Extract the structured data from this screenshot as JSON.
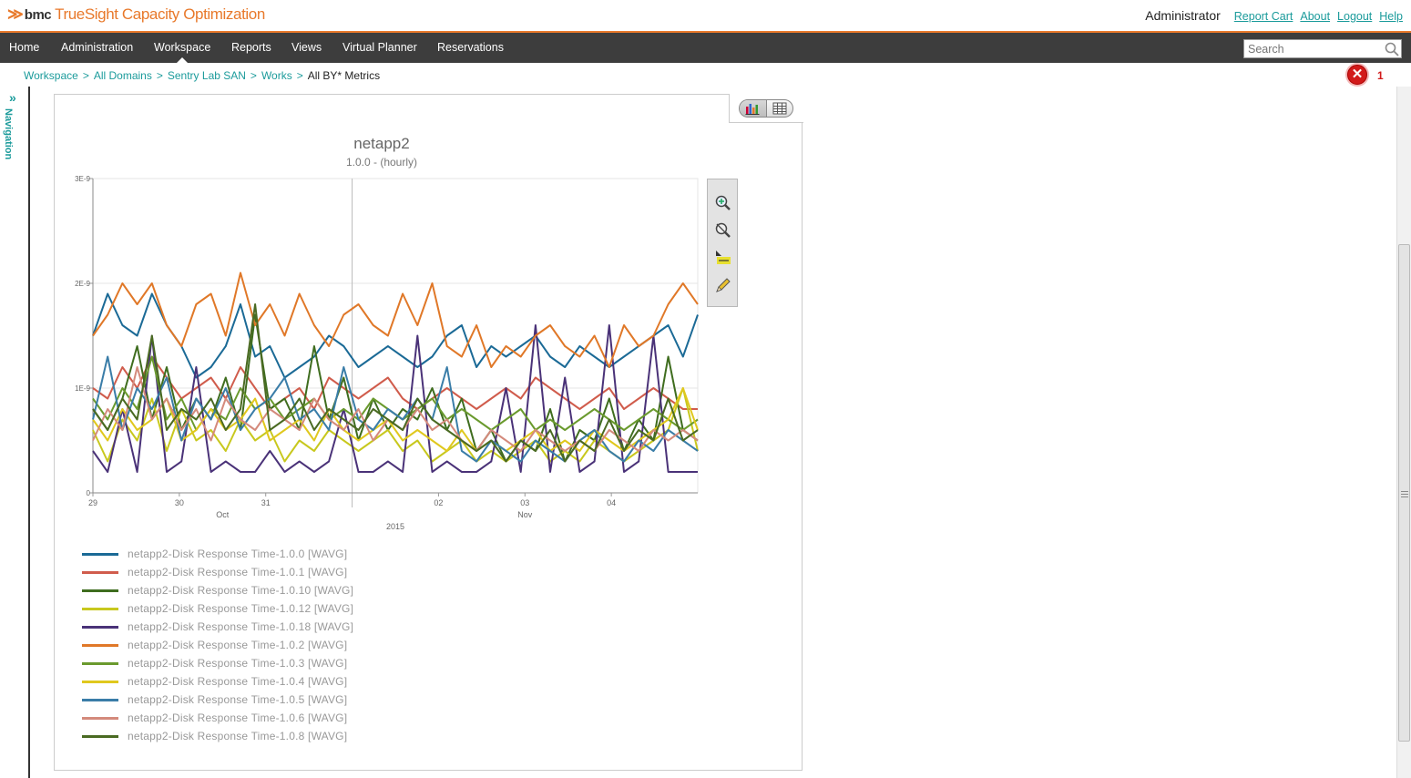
{
  "app": {
    "brand_name": "bmc",
    "product_name": "TrueSight Capacity Optimization",
    "user_name": "Administrator",
    "user_links": [
      "Report Cart",
      "About",
      "Logout",
      "Help"
    ]
  },
  "nav": {
    "items": [
      "Home",
      "Administration",
      "Workspace",
      "Reports",
      "Views",
      "Virtual Planner",
      "Reservations"
    ],
    "active": "Workspace",
    "search_placeholder": "Search"
  },
  "breadcrumb": {
    "links": [
      "Workspace",
      "All Domains",
      "Sentry Lab SAN",
      "Works"
    ],
    "current": "All BY* Metrics"
  },
  "errors": {
    "count": "1"
  },
  "side_panel": {
    "label": "Navigation"
  },
  "colors": {
    "accent": "#e8792b",
    "link": "#1b9b9b",
    "navbar": "#3d3d3d",
    "error": "#d21a1a"
  },
  "toolbar": {
    "view_toggle": [
      "chart-view-icon",
      "table-view-icon"
    ],
    "tools": [
      "zoom-in-icon",
      "zoom-reset-icon",
      "label-icon",
      "pencil-icon"
    ]
  },
  "chart_data": {
    "type": "line",
    "title": "netapp2",
    "subtitle": "1.0.0 - (hourly)",
    "y_tick_labels": [
      "0",
      "1E-9",
      "2E-9",
      "3E-9"
    ],
    "y_ticks": [
      0,
      1e-09,
      2e-09,
      3e-09
    ],
    "ylim": [
      0,
      3e-09
    ],
    "x_tick_labels": [
      "29",
      "30",
      "31",
      "02",
      "03",
      "04"
    ],
    "x_tick_values": [
      0,
      1,
      2,
      4,
      5,
      6
    ],
    "xlim": [
      0,
      7
    ],
    "month_labels": [
      {
        "label": "Oct",
        "x": 1.5
      },
      {
        "label": "Nov",
        "x": 5.0
      }
    ],
    "year_label": "2015",
    "month_boundary_x": 3,
    "grid": true,
    "legend_position": "bottom",
    "series": [
      {
        "name": "netapp2-Disk Response Time-1.0.0 [WAVG]",
        "color": "#1b6a96",
        "values": [
          1.5e-09,
          1.9e-09,
          1.6e-09,
          1.5e-09,
          1.9e-09,
          1.6e-09,
          1.4e-09,
          1.1e-09,
          1.2e-09,
          1.4e-09,
          1.8e-09,
          1.3e-09,
          1.4e-09,
          1.1e-09,
          1.2e-09,
          1.3e-09,
          1.5e-09,
          1.4e-09,
          1.2e-09,
          1.3e-09,
          1.4e-09,
          1.3e-09,
          1.2e-09,
          1.3e-09,
          1.5e-09,
          1.6e-09,
          1.2e-09,
          1.4e-09,
          1.3e-09,
          1.4e-09,
          1.5e-09,
          1.3e-09,
          1.2e-09,
          1.4e-09,
          1.3e-09,
          1.2e-09,
          1.3e-09,
          1.4e-09,
          1.5e-09,
          1.6e-09,
          1.3e-09,
          1.7e-09
        ]
      },
      {
        "name": "netapp2-Disk Response Time-1.0.1 [WAVG]",
        "color": "#d05c4c",
        "values": [
          1e-09,
          9e-10,
          1.2e-09,
          1e-09,
          1.3e-09,
          1.1e-09,
          9e-10,
          1e-09,
          1.1e-09,
          9e-10,
          1.2e-09,
          1e-09,
          8e-10,
          9e-10,
          1e-09,
          8e-10,
          1.1e-09,
          1e-09,
          9e-10,
          1e-09,
          1.1e-09,
          9e-10,
          8e-10,
          9e-10,
          1e-09,
          9e-10,
          8e-10,
          9e-10,
          1e-09,
          9e-10,
          1.1e-09,
          1e-09,
          9e-10,
          8e-10,
          9e-10,
          1e-09,
          8e-10,
          9e-10,
          1e-09,
          9e-10,
          8e-10,
          8e-10
        ]
      },
      {
        "name": "netapp2-Disk Response Time-1.0.10 [WAVG]",
        "color": "#3f6d1f",
        "values": [
          8e-10,
          6e-10,
          9e-10,
          1.4e-09,
          7e-10,
          1.2e-09,
          6e-10,
          9e-10,
          7e-10,
          1.1e-09,
          6e-10,
          1.7e-09,
          8e-10,
          9e-10,
          6e-10,
          1.4e-09,
          7e-10,
          1.1e-09,
          5e-10,
          9e-10,
          6e-10,
          8e-10,
          7e-10,
          1e-09,
          6e-10,
          9e-10,
          4e-10,
          6e-10,
          3e-10,
          5e-10,
          4e-10,
          8e-10,
          3e-10,
          6e-10,
          5e-10,
          9e-10,
          4e-10,
          7e-10,
          5e-10,
          1.3e-09,
          6e-10,
          5e-10
        ]
      },
      {
        "name": "netapp2-Disk Response Time-1.0.12 [WAVG]",
        "color": "#c8c81e",
        "values": [
          6e-10,
          3e-10,
          7e-10,
          5e-10,
          9e-10,
          4e-10,
          8e-10,
          5e-10,
          6e-10,
          4e-10,
          7e-10,
          5e-10,
          6e-10,
          3e-10,
          5e-10,
          4e-10,
          6e-10,
          5e-10,
          4e-10,
          5e-10,
          6e-10,
          4e-10,
          5e-10,
          3e-10,
          4e-10,
          5e-10,
          3e-10,
          4e-10,
          3e-10,
          4e-10,
          5e-10,
          3e-10,
          4e-10,
          3e-10,
          5e-10,
          4e-10,
          3e-10,
          4e-10,
          5e-10,
          6e-10,
          1e-09,
          4e-10
        ]
      },
      {
        "name": "netapp2-Disk Response Time-1.0.18 [WAVG]",
        "color": "#4a3278",
        "values": [
          4e-10,
          2e-10,
          8e-10,
          2e-10,
          1.5e-09,
          2e-10,
          3e-10,
          1.2e-09,
          2e-10,
          3e-10,
          2e-10,
          2e-10,
          4e-10,
          2e-10,
          3e-10,
          2e-10,
          3e-10,
          8e-10,
          2e-10,
          2e-10,
          3e-10,
          2e-10,
          1.5e-09,
          2e-10,
          3e-10,
          2e-10,
          2e-10,
          3e-10,
          1e-09,
          2e-10,
          1.6e-09,
          2e-10,
          1.1e-09,
          2e-10,
          3e-10,
          1.6e-09,
          2e-10,
          3e-10,
          1.5e-09,
          2e-10,
          2e-10,
          2e-10
        ]
      },
      {
        "name": "netapp2-Disk Response Time-1.0.2 [WAVG]",
        "color": "#e07828",
        "values": [
          1.5e-09,
          1.7e-09,
          2e-09,
          1.8e-09,
          2e-09,
          1.6e-09,
          1.4e-09,
          1.8e-09,
          1.9e-09,
          1.5e-09,
          2.1e-09,
          1.6e-09,
          1.8e-09,
          1.5e-09,
          1.9e-09,
          1.6e-09,
          1.4e-09,
          1.7e-09,
          1.8e-09,
          1.6e-09,
          1.5e-09,
          1.9e-09,
          1.6e-09,
          2e-09,
          1.4e-09,
          1.3e-09,
          1.6e-09,
          1.2e-09,
          1.4e-09,
          1.3e-09,
          1.5e-09,
          1.6e-09,
          1.4e-09,
          1.3e-09,
          1.5e-09,
          1.2e-09,
          1.6e-09,
          1.4e-09,
          1.5e-09,
          1.8e-09,
          2e-09,
          1.8e-09
        ]
      },
      {
        "name": "netapp2-Disk Response Time-1.0.3 [WAVG]",
        "color": "#6a9a2e",
        "values": [
          9e-10,
          7e-10,
          1e-09,
          8e-10,
          1.3e-09,
          7e-10,
          9e-10,
          6e-10,
          8e-10,
          7e-10,
          1e-09,
          8e-10,
          9e-10,
          7e-10,
          8e-10,
          9e-10,
          7e-10,
          8e-10,
          7e-10,
          9e-10,
          8e-10,
          7e-10,
          8e-10,
          9e-10,
          7e-10,
          8e-10,
          7e-10,
          6e-10,
          7e-10,
          8e-10,
          6e-10,
          7e-10,
          6e-10,
          7e-10,
          8e-10,
          7e-10,
          6e-10,
          7e-10,
          8e-10,
          7e-10,
          6e-10,
          7e-10
        ]
      },
      {
        "name": "netapp2-Disk Response Time-1.0.4 [WAVG]",
        "color": "#e0c81e",
        "values": [
          7e-10,
          5e-10,
          8e-10,
          6e-10,
          7e-10,
          9e-10,
          5e-10,
          6e-10,
          8e-10,
          6e-10,
          7e-10,
          9e-10,
          5e-10,
          6e-10,
          7e-10,
          5e-10,
          8e-10,
          6e-10,
          5e-10,
          6e-10,
          7e-10,
          5e-10,
          6e-10,
          5e-10,
          4e-10,
          6e-10,
          4e-10,
          5e-10,
          4e-10,
          5e-10,
          6e-10,
          4e-10,
          5e-10,
          4e-10,
          6e-10,
          5e-10,
          4e-10,
          5e-10,
          6e-10,
          7e-10,
          1e-09,
          6e-10
        ]
      },
      {
        "name": "netapp2-Disk Response Time-1.0.5 [WAVG]",
        "color": "#3a7da8",
        "values": [
          7e-10,
          1.3e-09,
          6e-10,
          1e-09,
          8e-10,
          1.1e-09,
          5e-10,
          9e-10,
          7e-10,
          1e-09,
          6e-10,
          8e-10,
          9e-10,
          1.1e-09,
          7e-10,
          8e-10,
          6e-10,
          1.2e-09,
          7e-10,
          6e-10,
          8e-10,
          7e-10,
          9e-10,
          7e-10,
          1.2e-09,
          4e-10,
          3e-10,
          5e-10,
          4e-10,
          3e-10,
          5e-10,
          4e-10,
          3e-10,
          5e-10,
          6e-10,
          4e-10,
          3e-10,
          5e-10,
          4e-10,
          6e-10,
          5e-10,
          4e-10
        ]
      },
      {
        "name": "netapp2-Disk Response Time-1.0.6 [WAVG]",
        "color": "#d48a7c",
        "values": [
          5e-10,
          8e-10,
          6e-10,
          1.2e-09,
          7e-10,
          9e-10,
          6e-10,
          8e-10,
          5e-10,
          9e-10,
          7e-10,
          6e-10,
          8e-10,
          7e-10,
          6e-10,
          9e-10,
          7e-10,
          6e-10,
          8e-10,
          5e-10,
          7e-10,
          6e-10,
          8e-10,
          6e-10,
          7e-10,
          5e-10,
          4e-10,
          6e-10,
          5e-10,
          4e-10,
          6e-10,
          5e-10,
          4e-10,
          5e-10,
          4e-10,
          6e-10,
          5e-10,
          4e-10,
          6e-10,
          5e-10,
          6e-10,
          5e-10
        ]
      },
      {
        "name": "netapp2-Disk Response Time-1.0.8 [WAVG]",
        "color": "#4a6a22",
        "values": [
          8e-10,
          6e-10,
          9e-10,
          7e-10,
          1.5e-09,
          6e-10,
          8e-10,
          7e-10,
          9e-10,
          6e-10,
          8e-10,
          1.8e-09,
          6e-10,
          7e-10,
          9e-10,
          6e-10,
          8e-10,
          7e-10,
          6e-10,
          8e-10,
          7e-10,
          6e-10,
          9e-10,
          7e-10,
          6e-10,
          5e-10,
          4e-10,
          5e-10,
          3e-10,
          5e-10,
          4e-10,
          6e-10,
          3e-10,
          5e-10,
          4e-10,
          7e-10,
          4e-10,
          6e-10,
          5e-10,
          9e-10,
          5e-10,
          6e-10
        ]
      }
    ]
  }
}
